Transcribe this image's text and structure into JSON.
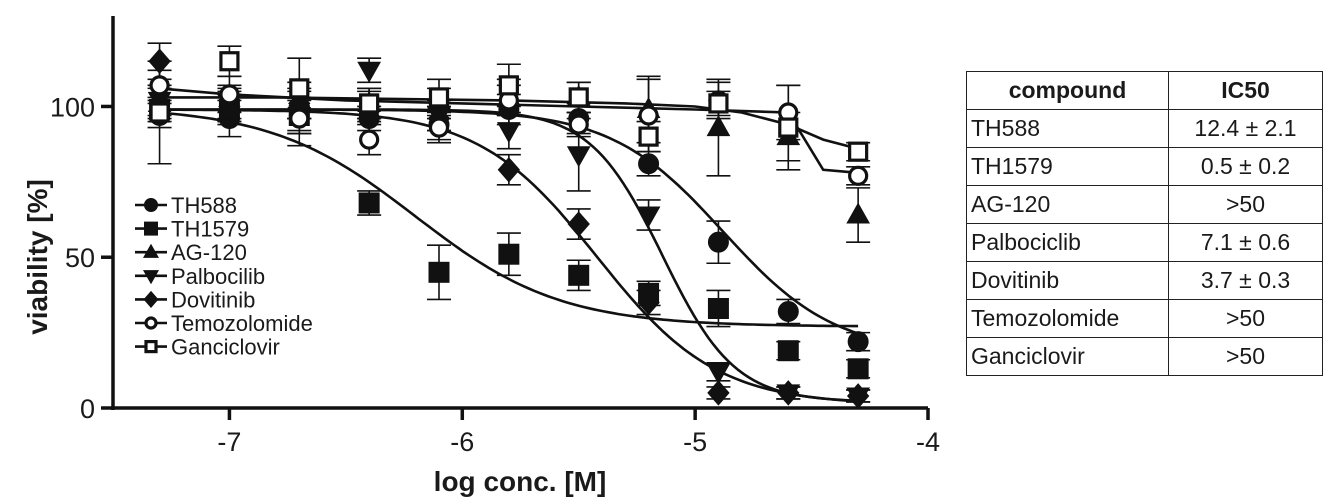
{
  "chart_data": {
    "type": "scatter",
    "xlabel": "log conc. [M]",
    "ylabel": "viability [%]",
    "xlim": [
      -7.5,
      -4
    ],
    "ylim": [
      0,
      130
    ],
    "xticks": [
      -7,
      -6,
      -5,
      -4
    ],
    "yticks": [
      0,
      50,
      100
    ],
    "x": [
      -7.3,
      -7.0,
      -6.7,
      -6.4,
      -6.1,
      -5.8,
      -5.5,
      -5.2,
      -4.9,
      -4.6,
      -4.3
    ],
    "legend_position": "lower-left",
    "series": [
      {
        "name": "TH588",
        "marker": "circle-filled",
        "values": [
          97,
          96,
          97,
          96,
          94,
          99,
          96,
          81,
          55,
          32,
          22
        ],
        "errors": [
          4,
          6,
          5,
          4,
          5,
          5,
          5,
          4,
          7,
          4,
          3
        ],
        "curve": {
          "top": 99,
          "bottom": 18,
          "logic50": -4.88,
          "hill": 1.8
        }
      },
      {
        "name": "TH1579",
        "marker": "square-filled",
        "values": [
          99,
          99,
          97,
          68,
          45,
          51,
          44,
          38,
          33,
          19,
          13
        ],
        "errors": [
          4,
          5,
          6,
          4,
          9,
          7,
          5,
          4,
          6,
          3,
          3
        ],
        "curve": {
          "top": 100,
          "bottom": 27,
          "logic50": -6.2,
          "hill": 1.4
        }
      },
      {
        "name": "AG-120",
        "marker": "triangle-up",
        "values": [
          101,
          101,
          102,
          101,
          101,
          103,
          103,
          99,
          93,
          90,
          64
        ],
        "errors": [
          5,
          6,
          6,
          5,
          5,
          6,
          5,
          11,
          16,
          8,
          9
        ],
        "curve": null
      },
      {
        "name": "Palbocilib",
        "marker": "triangle-down",
        "values": [
          102,
          101,
          97,
          112,
          97,
          92,
          84,
          64,
          12,
          5,
          4
        ],
        "errors": [
          5,
          5,
          6,
          4,
          5,
          6,
          12,
          5,
          3,
          2,
          2
        ],
        "curve": {
          "top": 99,
          "bottom": 2,
          "logic50": -5.14,
          "hill": 2.8
        }
      },
      {
        "name": "Dovitinib",
        "marker": "diamond",
        "values": [
          115,
          100,
          101,
          100,
          96,
          79,
          61,
          35,
          5,
          5,
          4
        ],
        "errors": [
          6,
          5,
          5,
          5,
          4,
          5,
          5,
          4,
          2,
          2,
          2
        ],
        "curve": {
          "top": 99,
          "bottom": 1,
          "logic50": -5.42,
          "hill": 1.7
        }
      },
      {
        "name": "Temozolomide",
        "marker": "circle-open",
        "values": [
          107,
          104,
          96,
          89,
          93,
          102,
          94,
          97,
          102,
          98,
          77
        ],
        "errors": [
          5,
          6,
          9,
          5,
          5,
          5,
          4,
          12,
          6,
          9,
          3
        ],
        "curve": {
          "points": [
            [
              -7.3,
              106
            ],
            [
              -7.0,
              104
            ],
            [
              -6.5,
              102
            ],
            [
              -6.0,
              101
            ],
            [
              -5.5,
              100
            ],
            [
              -5.0,
              99
            ],
            [
              -4.6,
              98
            ],
            [
              -4.45,
              79
            ],
            [
              -4.3,
              78
            ]
          ]
        }
      },
      {
        "name": "Ganciclovir",
        "marker": "square-open",
        "values": [
          98,
          115,
          106,
          101,
          103,
          107,
          103,
          90,
          101,
          93,
          85
        ],
        "errors": [
          17,
          5,
          10,
          5,
          6,
          7,
          5,
          5,
          4,
          14,
          3
        ],
        "curve": {
          "points": [
            [
              -7.3,
              103
            ],
            [
              -6.8,
              103
            ],
            [
              -6.3,
              102.5
            ],
            [
              -5.8,
              102
            ],
            [
              -5.3,
              101
            ],
            [
              -5.0,
              100
            ],
            [
              -4.8,
              98
            ],
            [
              -4.6,
              94
            ],
            [
              -4.45,
              89
            ],
            [
              -4.3,
              86
            ]
          ]
        }
      }
    ]
  },
  "table": {
    "headers": [
      "compound",
      "IC50"
    ],
    "rows": [
      [
        "TH588",
        "12.4 ± 2.1"
      ],
      [
        "TH1579",
        "0.5 ± 0.2"
      ],
      [
        "AG-120",
        ">50"
      ],
      [
        "Palbociclib",
        "7.1 ± 0.6"
      ],
      [
        "Dovitinib",
        "3.7 ± 0.3"
      ],
      [
        "Temozolomide",
        ">50"
      ],
      [
        "Ganciclovir",
        ">50"
      ]
    ]
  }
}
